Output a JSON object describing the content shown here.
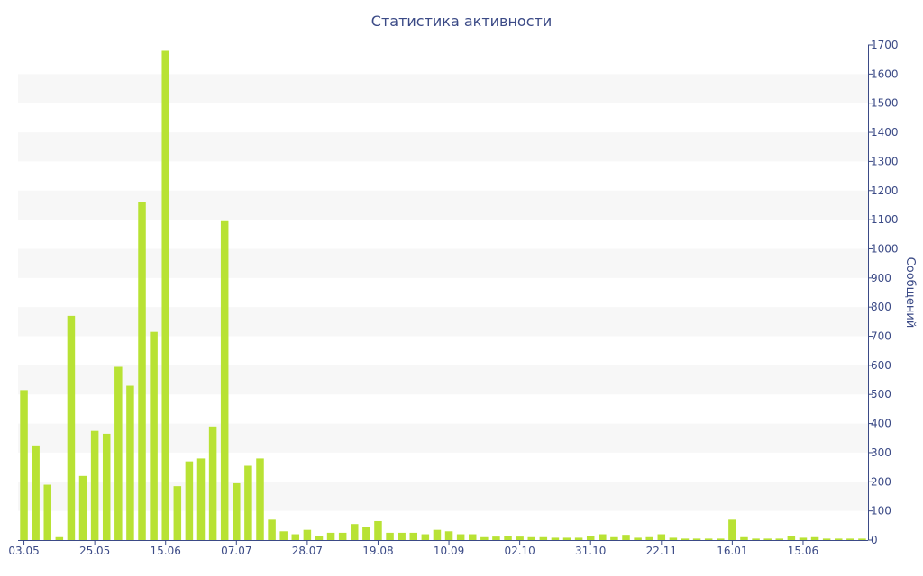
{
  "chart_data": {
    "type": "bar",
    "title": "Статистика активности",
    "ylabel": "Сообщений",
    "xlabel": "",
    "ylim": [
      0,
      1700
    ],
    "y_ticks": [
      0,
      100,
      200,
      300,
      400,
      500,
      600,
      700,
      800,
      900,
      1000,
      1100,
      1200,
      1300,
      1400,
      1500,
      1600,
      1700
    ],
    "y_axis_side": "right",
    "x_tick_labels": [
      {
        "label": "03.05",
        "index": 0
      },
      {
        "label": "25.05",
        "index": 6
      },
      {
        "label": "15.06",
        "index": 12
      },
      {
        "label": "07.07",
        "index": 18
      },
      {
        "label": "28.07",
        "index": 24
      },
      {
        "label": "19.08",
        "index": 30
      },
      {
        "label": "10.09",
        "index": 36
      },
      {
        "label": "02.10",
        "index": 42
      },
      {
        "label": "31.10",
        "index": 48
      },
      {
        "label": "22.11",
        "index": 54
      },
      {
        "label": "16.01",
        "index": 60
      },
      {
        "label": "15.06",
        "index": 66
      }
    ],
    "values": [
      515,
      325,
      190,
      10,
      770,
      220,
      375,
      365,
      595,
      530,
      1160,
      715,
      1680,
      185,
      270,
      280,
      390,
      1095,
      195,
      255,
      280,
      70,
      30,
      20,
      35,
      15,
      25,
      25,
      55,
      45,
      65,
      25,
      25,
      25,
      20,
      35,
      30,
      20,
      20,
      10,
      12,
      15,
      12,
      10,
      10,
      8,
      8,
      8,
      15,
      20,
      10,
      18,
      8,
      10,
      20,
      8,
      5,
      5,
      5,
      5,
      70,
      10,
      5,
      5,
      5,
      15,
      8,
      10,
      5,
      5,
      5,
      5
    ],
    "colors": {
      "bar": "#b8e234",
      "axis": "#3b4a86",
      "grid_band": "#f7f7f7",
      "text": "#3b4a86"
    },
    "grid": true
  }
}
